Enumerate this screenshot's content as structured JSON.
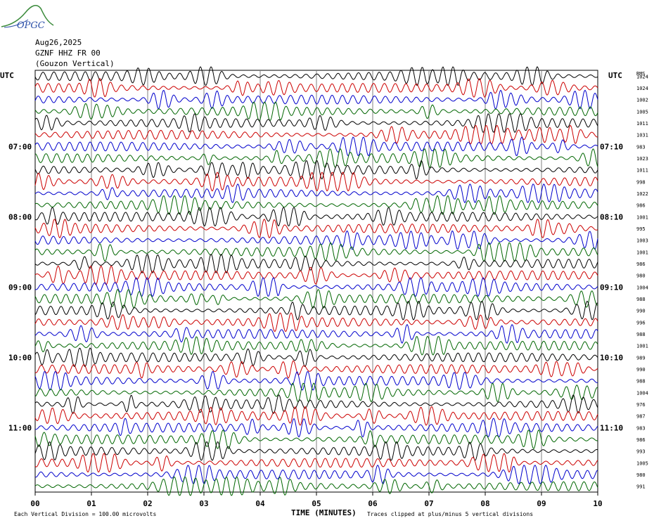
{
  "logo": {
    "text": "OPGC"
  },
  "header": {
    "date": "Aug26,2025",
    "station": "GZNF HHZ FR 00",
    "location": "(Gouzon Vertical)"
  },
  "left_axis_label": "UTC",
  "right_axis_label": "UTC",
  "rms_header": "RMS",
  "x_axis_title": "TIME (MINUTES)",
  "scale_note": "Each Vertical Division =  100.00 microvolts",
  "clip_note": "Traces clipped at plus/minus 5 vertical divisions",
  "colors": {
    "trace_cycle": [
      "#000000",
      "#cc0000",
      "#0000cc",
      "#006600"
    ],
    "grid": "#808080"
  },
  "chart_data": {
    "type": "line",
    "title": "GZNF HHZ FR 00 (Gouzon Vertical)",
    "xlabel": "TIME (MINUTES)",
    "ylabel": "UTC",
    "xlim": [
      0,
      10
    ],
    "x_ticks": [
      "00",
      "01",
      "02",
      "03",
      "04",
      "05",
      "06",
      "07",
      "08",
      "09",
      "10"
    ],
    "trace_interval_minutes": 10,
    "trace_count": 36,
    "left_time_labels": [
      {
        "row": 6,
        "label": "07:00"
      },
      {
        "row": 12,
        "label": "08:00"
      },
      {
        "row": 18,
        "label": "09:00"
      },
      {
        "row": 24,
        "label": "10:00"
      },
      {
        "row": 30,
        "label": "11:00"
      }
    ],
    "right_time_labels": [
      {
        "row": 6,
        "label": "07:10"
      },
      {
        "row": 12,
        "label": "08:10"
      },
      {
        "row": 18,
        "label": "09:10"
      },
      {
        "row": 24,
        "label": "10:10"
      },
      {
        "row": 30,
        "label": "11:10"
      }
    ],
    "rms_values": [
      "1024",
      "1024",
      "1002",
      "1005",
      "1011",
      "1031",
      "983",
      "1023",
      "1011",
      "998",
      "1022",
      "986",
      "1001",
      "995",
      "1003",
      "1001",
      "986",
      "980",
      "1004",
      "988",
      "990",
      "996",
      "988",
      "1001",
      "989",
      "990",
      "988",
      "1004",
      "976",
      "987",
      "983",
      "986",
      "993",
      "1005",
      "980",
      "991"
    ],
    "grid": true
  }
}
